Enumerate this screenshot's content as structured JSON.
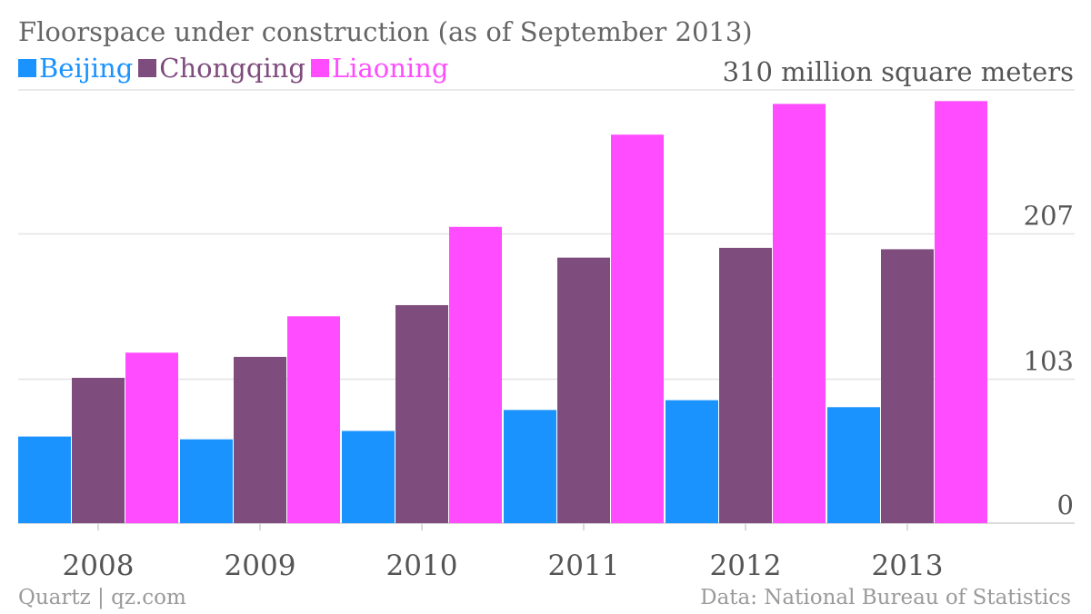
{
  "chart_data": {
    "type": "bar",
    "title": "Floorspace under construction (as of September 2013)",
    "categories": [
      "2008",
      "2009",
      "2010",
      "2011",
      "2012",
      "2013"
    ],
    "series": [
      {
        "name": "Beijing",
        "color": "#1a93ff",
        "values": [
          62,
          60,
          66,
          81,
          88,
          83
        ]
      },
      {
        "name": "Chongqing",
        "color": "#7f4c7e",
        "values": [
          104,
          119,
          156,
          190,
          197,
          196
        ]
      },
      {
        "name": "Liaoning",
        "color": "#ff4cff",
        "values": [
          122,
          148,
          212,
          278,
          300,
          302
        ]
      }
    ],
    "ylim": [
      0,
      310
    ],
    "yticks": [
      {
        "value": 0,
        "label": "0"
      },
      {
        "value": 103,
        "label": "103"
      },
      {
        "value": 207,
        "label": "207"
      },
      {
        "value": 310,
        "label": "310 million square meters"
      }
    ],
    "grid": true,
    "legend_position": "top-left",
    "axis_position": "right"
  },
  "footer": {
    "source_left": "Quartz | qz.com",
    "source_right": "Data: National Bureau of Statistics"
  }
}
